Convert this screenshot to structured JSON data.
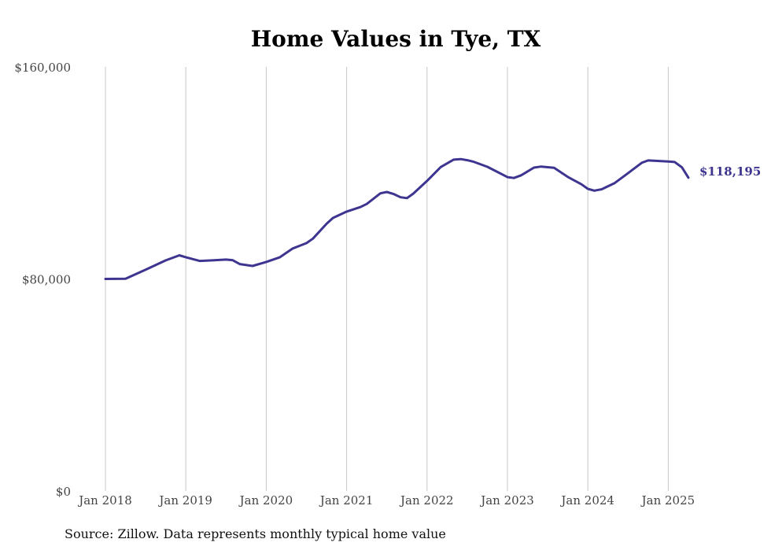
{
  "chart_data": {
    "type": "line",
    "title": "Home Values in Tye, TX",
    "xlabel": "",
    "ylabel": "",
    "ylim": [
      0,
      160000
    ],
    "y_ticks": [
      "$0",
      "$80,000",
      "$160,000"
    ],
    "y_tick_values": [
      0,
      80000,
      160000
    ],
    "x_ticks": [
      "Jan 2018",
      "Jan 2019",
      "Jan 2020",
      "Jan 2021",
      "Jan 2022",
      "Jan 2023",
      "Jan 2024",
      "Jan 2025"
    ],
    "x_tick_values": [
      2018.0,
      2019.0,
      2020.0,
      2021.0,
      2022.0,
      2023.0,
      2024.0,
      2025.0
    ],
    "grid": "vertical",
    "color": "#3d3590",
    "end_label": "$118,195",
    "source": "Source: Zillow. Data represents monthly typical home value",
    "series": [
      {
        "x": [
          2018.0,
          2018.25,
          2018.5,
          2018.75,
          2018.92,
          2019.0,
          2019.17,
          2019.33,
          2019.5,
          2019.58,
          2019.67,
          2019.83,
          2020.0,
          2020.17,
          2020.33,
          2020.5,
          2020.58,
          2020.75,
          2020.83,
          2021.0,
          2021.17,
          2021.25,
          2021.42,
          2021.5,
          2021.58,
          2021.67,
          2021.75,
          2021.83,
          2022.0,
          2022.17,
          2022.33,
          2022.42,
          2022.5,
          2022.58,
          2022.75,
          2023.0,
          2023.08,
          2023.17,
          2023.33,
          2023.42,
          2023.58,
          2023.75,
          2023.92,
          2024.0,
          2024.08,
          2024.17,
          2024.33,
          2024.5,
          2024.67,
          2024.75,
          2025.0,
          2025.08,
          2025.17,
          2025.25
        ],
        "y": [
          80000,
          80100,
          83500,
          87000,
          88900,
          88200,
          86800,
          87000,
          87300,
          87100,
          85600,
          84900,
          86400,
          88200,
          91500,
          93500,
          95200,
          100800,
          103000,
          105400,
          107100,
          108300,
          112300,
          112800,
          112100,
          110800,
          110500,
          112200,
          117000,
          122200,
          125000,
          125200,
          124800,
          124200,
          122300,
          118400,
          118100,
          119100,
          122000,
          122400,
          121900,
          118500,
          115700,
          114000,
          113300,
          113800,
          116100,
          119900,
          123800,
          124700,
          124300,
          124100,
          122100,
          118195
        ]
      }
    ]
  }
}
